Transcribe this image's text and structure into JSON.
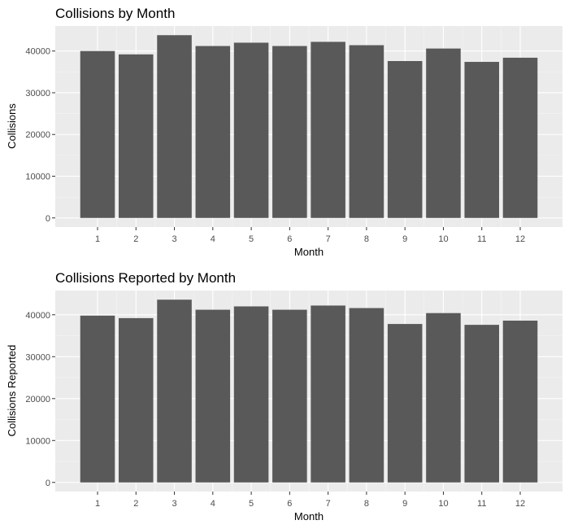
{
  "colors": {
    "panel_background": "#ebebeb",
    "grid_major": "#ffffff",
    "grid_minor": "#f5f5f5",
    "bar_fill": "#595959",
    "tick_text": "#4d4d4d",
    "title_text": "#000000"
  },
  "chart_data": [
    {
      "type": "bar",
      "title": "Collisions by Month",
      "xlabel": "Month",
      "ylabel": "Collisions",
      "categories": [
        "1",
        "2",
        "3",
        "4",
        "5",
        "6",
        "7",
        "8",
        "9",
        "10",
        "11",
        "12"
      ],
      "values": [
        40000,
        39200,
        43800,
        41200,
        42000,
        41200,
        42200,
        41400,
        37600,
        40600,
        37400,
        38400
      ],
      "y_ticks": [
        0,
        10000,
        20000,
        30000,
        40000
      ],
      "y_tick_labels": [
        "0",
        "10000",
        "20000",
        "30000",
        "40000"
      ],
      "ylim": [
        -2190,
        45990
      ],
      "grid": true,
      "legend": "none"
    },
    {
      "type": "bar",
      "title": "Collisions Reported by Month",
      "xlabel": "Month",
      "ylabel": "Collisions Reported",
      "categories": [
        "1",
        "2",
        "3",
        "4",
        "5",
        "6",
        "7",
        "8",
        "9",
        "10",
        "11",
        "12"
      ],
      "values": [
        39800,
        39200,
        43600,
        41200,
        42000,
        41200,
        42200,
        41600,
        37800,
        40400,
        37600,
        38600
      ],
      "y_ticks": [
        0,
        10000,
        20000,
        30000,
        40000
      ],
      "y_tick_labels": [
        "0",
        "10000",
        "20000",
        "30000",
        "40000"
      ],
      "ylim": [
        -2180,
        45780
      ],
      "grid": true,
      "legend": "none"
    }
  ]
}
